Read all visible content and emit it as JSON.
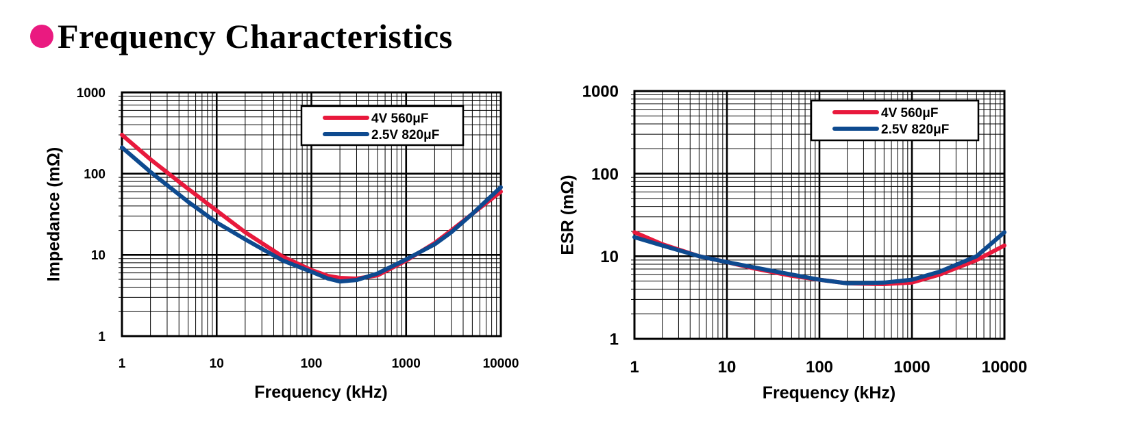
{
  "page": {
    "title": "Frequency Characteristics",
    "bullet_color": "#ea1a80"
  },
  "chart_data": [
    {
      "type": "line",
      "xscale": "log",
      "yscale": "log",
      "xlabel": "Frequency  (kHz)",
      "ylabel": "Impedance  (mΩ)",
      "xlim": [
        1,
        10000
      ],
      "ylim": [
        1,
        1000
      ],
      "xticks": [
        "1",
        "10",
        "100",
        "1000",
        "10000"
      ],
      "yticks": [
        "1",
        "10",
        "100",
        "1000"
      ],
      "grid": true,
      "legend_position": "top-right",
      "series": [
        {
          "name": "4V 560μF",
          "color": "#e8193c",
          "points": [
            [
              1,
              300
            ],
            [
              2,
              150
            ],
            [
              5,
              65
            ],
            [
              10,
              35
            ],
            [
              20,
              19
            ],
            [
              50,
              9.5
            ],
            [
              100,
              6.5
            ],
            [
              150,
              5.5
            ],
            [
              200,
              5.2
            ],
            [
              300,
              5.1
            ],
            [
              500,
              5.6
            ],
            [
              1000,
              8.5
            ],
            [
              2000,
              14
            ],
            [
              3000,
              20
            ],
            [
              5000,
              32
            ],
            [
              10000,
              60
            ]
          ]
        },
        {
          "name": "2.5V 820μF",
          "color": "#0e4a8f",
          "points": [
            [
              1,
              210
            ],
            [
              2,
              105
            ],
            [
              5,
              45
            ],
            [
              10,
              25
            ],
            [
              20,
              15.5
            ],
            [
              50,
              8.5
            ],
            [
              100,
              6.2
            ],
            [
              150,
              5.1
            ],
            [
              200,
              4.7
            ],
            [
              300,
              4.9
            ],
            [
              500,
              5.9
            ],
            [
              1000,
              8.8
            ],
            [
              2000,
              13.5
            ],
            [
              3000,
              19
            ],
            [
              5000,
              32
            ],
            [
              10000,
              68
            ]
          ]
        }
      ]
    },
    {
      "type": "line",
      "xscale": "log",
      "yscale": "log",
      "xlabel": "Frequency  (kHz)",
      "ylabel": "ESR  (mΩ)",
      "xlim": [
        1,
        10000
      ],
      "ylim": [
        1,
        1000
      ],
      "xticks": [
        "1",
        "10",
        "100",
        "1000",
        "10000"
      ],
      "yticks": [
        "1",
        "10",
        "100",
        "1000"
      ],
      "grid": true,
      "legend_position": "top-right",
      "series": [
        {
          "name": "4V 560μF",
          "color": "#e8193c",
          "points": [
            [
              1,
              19.5
            ],
            [
              2,
              14
            ],
            [
              5,
              10
            ],
            [
              10,
              8.5
            ],
            [
              20,
              7.1
            ],
            [
              50,
              5.8
            ],
            [
              100,
              5.2
            ],
            [
              200,
              4.7
            ],
            [
              500,
              4.6
            ],
            [
              1000,
              4.8
            ],
            [
              2000,
              6
            ],
            [
              5000,
              9
            ],
            [
              10000,
              13.5
            ]
          ]
        },
        {
          "name": "2.5V 820μF",
          "color": "#0e4a8f",
          "points": [
            [
              1,
              17
            ],
            [
              2,
              13.5
            ],
            [
              5,
              10
            ],
            [
              10,
              8.5
            ],
            [
              20,
              7.3
            ],
            [
              50,
              6
            ],
            [
              100,
              5.2
            ],
            [
              200,
              4.7
            ],
            [
              500,
              4.8
            ],
            [
              1000,
              5.2
            ],
            [
              2000,
              6.5
            ],
            [
              5000,
              10
            ],
            [
              10000,
              19.5
            ]
          ]
        }
      ]
    }
  ]
}
